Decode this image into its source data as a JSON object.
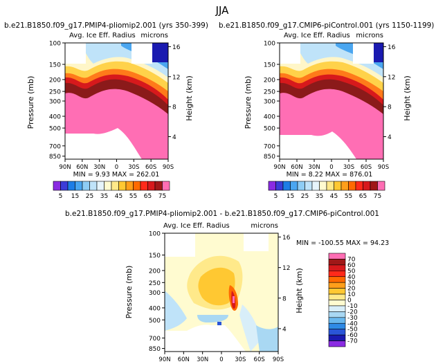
{
  "page_title": "JJA",
  "chart_data": [
    {
      "type": "heatmap",
      "title": "b.e21.B1850.f09_g17.PMIP4-pliomip2.001 (yrs 350-399)",
      "subtitle_left": "Avg. Ice Eff. Radius",
      "units": "microns",
      "xlabel": "",
      "ylabel": "Pressure (mb)",
      "ylabel_right": "Height (km)",
      "x_ticks": [
        "90N",
        "60N",
        "30N",
        "0",
        "30S",
        "60S",
        "90S"
      ],
      "x_values": [
        90,
        60,
        30,
        0,
        -30,
        -60,
        -90
      ],
      "y_ticks": [
        "100",
        "150",
        "200",
        "250",
        "300",
        "400",
        "500",
        "700",
        "850"
      ],
      "y_values": [
        100,
        150,
        200,
        250,
        300,
        400,
        500,
        700,
        850
      ],
      "y_right_ticks": [
        "16",
        "12",
        "8",
        "4"
      ],
      "y_right_values": [
        16,
        12,
        8,
        4
      ],
      "ylim": [
        100,
        900
      ],
      "stats": "MIN =    9.93  MAX =  262.01",
      "min": 9.93,
      "max": 262.01,
      "colorbar_labels": [
        "5",
        "15",
        "25",
        "35",
        "45",
        "55",
        "65",
        "75"
      ],
      "colorbar_colors": [
        "#8a2be2",
        "#3c3cd8",
        "#1e7de6",
        "#4aa6f0",
        "#8ecdf5",
        "#bfe3f9",
        "#e6f4fb",
        "#fffbd0",
        "#ffe98a",
        "#ffc832",
        "#ff9f1a",
        "#ff6a00",
        "#ff2a1a",
        "#d7191c",
        "#a01818",
        "#ff6eb4"
      ]
    },
    {
      "type": "heatmap",
      "title": "b.e21.B1850.f09_g17.CMIP6-piControl.001 (yrs 1150-1199)",
      "subtitle_left": "Avg. Ice Eff. Radius",
      "units": "microns",
      "xlabel": "",
      "ylabel": "Pressure (mb)",
      "ylabel_right": "Height (km)",
      "x_ticks": [
        "90N",
        "60N",
        "30N",
        "0",
        "30S",
        "60S",
        "90S"
      ],
      "x_values": [
        90,
        60,
        30,
        0,
        -30,
        -60,
        -90
      ],
      "y_ticks": [
        "100",
        "150",
        "200",
        "250",
        "300",
        "400",
        "500",
        "700",
        "850"
      ],
      "y_values": [
        100,
        150,
        200,
        250,
        300,
        400,
        500,
        700,
        850
      ],
      "y_right_ticks": [
        "16",
        "12",
        "8",
        "4"
      ],
      "y_right_values": [
        16,
        12,
        8,
        4
      ],
      "ylim": [
        100,
        900
      ],
      "stats": "MIN =    8.22  MAX =  876.01",
      "min": 8.22,
      "max": 876.01,
      "colorbar_labels": [
        "5",
        "15",
        "25",
        "35",
        "45",
        "55",
        "65",
        "75"
      ],
      "colorbar_colors": [
        "#8a2be2",
        "#3c3cd8",
        "#1e7de6",
        "#4aa6f0",
        "#8ecdf5",
        "#bfe3f9",
        "#e6f4fb",
        "#fffbd0",
        "#ffe98a",
        "#ffc832",
        "#ff9f1a",
        "#ff6a00",
        "#ff2a1a",
        "#d7191c",
        "#a01818",
        "#ff6eb4"
      ]
    },
    {
      "type": "heatmap",
      "title": "b.e21.B1850.f09_g17.PMIP4-pliomip2.001 - b.e21.B1850.f09_g17.CMIP6-piControl.001",
      "subtitle_left": "Avg. Ice Eff. Radius",
      "units": "microns",
      "xlabel": "",
      "ylabel": "Pressure (mb)",
      "ylabel_right": "Height (km)",
      "x_ticks": [
        "90N",
        "60N",
        "30N",
        "0",
        "30S",
        "60S",
        "90S"
      ],
      "x_values": [
        90,
        60,
        30,
        0,
        -30,
        -60,
        -90
      ],
      "y_ticks": [
        "100",
        "150",
        "200",
        "250",
        "300",
        "400",
        "500",
        "700",
        "850"
      ],
      "y_values": [
        100,
        150,
        200,
        250,
        300,
        400,
        500,
        700,
        850
      ],
      "y_right_ticks": [
        "16",
        "12",
        "8",
        "4"
      ],
      "y_right_values": [
        16,
        12,
        8,
        4
      ],
      "ylim": [
        100,
        900
      ],
      "stats": "MIN = -100.55   MAX =   94.23",
      "min": -100.55,
      "max": 94.23,
      "colorbar_labels": [
        "70",
        "60",
        "50",
        "40",
        "30",
        "20",
        "10",
        "0",
        "-10",
        "-20",
        "-30",
        "-40",
        "-50",
        "-60",
        "-70"
      ],
      "colorbar_colors": [
        "#ff6eb4",
        "#a01818",
        "#d7191c",
        "#ff2a1a",
        "#ff6a00",
        "#ff9f1a",
        "#ffc832",
        "#ffe98a",
        "#fffbd0",
        "#d8eef9",
        "#a9d8f3",
        "#6ab8ee",
        "#2f8ae6",
        "#2a55d8",
        "#1a1ab0",
        "#8a2be2"
      ]
    }
  ]
}
